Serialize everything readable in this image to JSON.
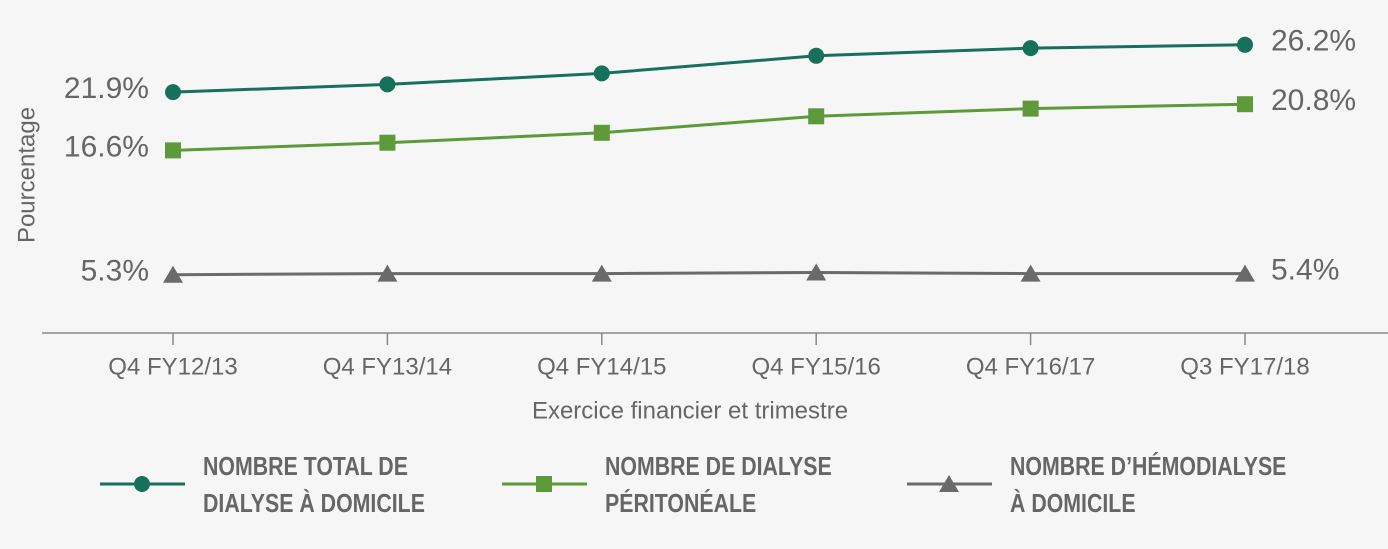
{
  "chart_data": {
    "type": "line",
    "x_label": "Exercice financier et trimestre",
    "y_label": "Pourcentage",
    "categories": [
      "Q4 FY12/13",
      "Q4 FY13/14",
      "Q4 FY14/15",
      "Q4 FY15/16",
      "Q4 FY16/17",
      "Q3 FY17/18"
    ],
    "ylim": [
      0,
      28
    ],
    "series": [
      {
        "name": "NOMBRE TOTAL DE DIALYSE À DOMICILE",
        "color": "#17705a",
        "marker": "circle",
        "values": [
          21.9,
          22.6,
          23.6,
          25.2,
          25.9,
          26.2
        ],
        "value_labels": [
          "21.9%",
          null,
          null,
          null,
          null,
          "26.2%"
        ]
      },
      {
        "name": "NOMBRE DE DIALYSE PÉRITONÉALE",
        "color": "#5e9a3a",
        "marker": "square",
        "values": [
          16.6,
          17.3,
          18.2,
          19.7,
          20.4,
          20.8
        ],
        "value_labels": [
          "16.6%",
          null,
          null,
          null,
          null,
          "20.8%"
        ]
      },
      {
        "name": "NOMBRE D’HÉMODIALYSE À DOMICILE",
        "color": "#6a6a6a",
        "marker": "triangle",
        "values": [
          5.3,
          5.4,
          5.4,
          5.5,
          5.4,
          5.4
        ],
        "value_labels": [
          "5.3%",
          null,
          null,
          null,
          null,
          "5.4%"
        ]
      }
    ]
  }
}
